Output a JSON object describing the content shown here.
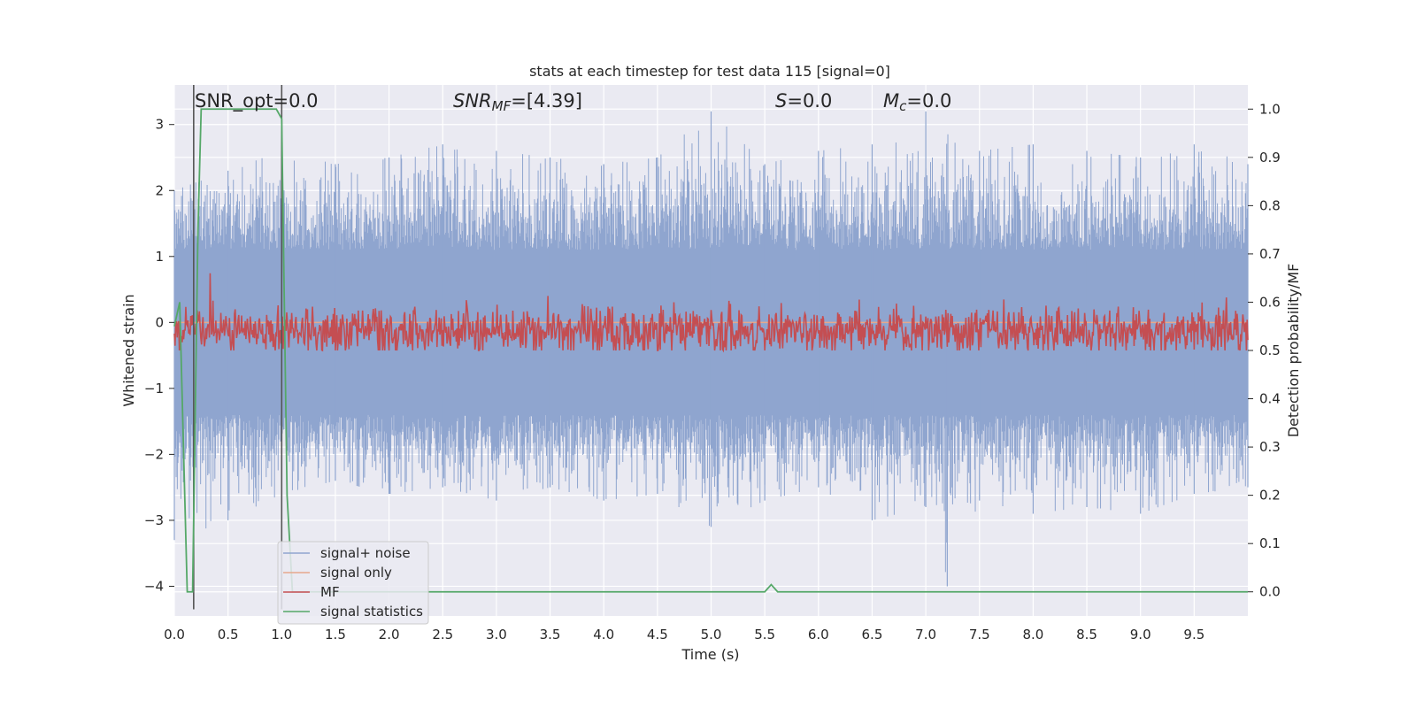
{
  "chart_data": {
    "type": "line",
    "title": "stats at each timestep for test data 115 [signal=0]",
    "xlabel": "Time (s)",
    "ylabel_left": "Whitened strain",
    "ylabel_right": "Detection probability/MF",
    "xlim": [
      0.0,
      10.0
    ],
    "ylim_left": [
      -4.45,
      3.6
    ],
    "ylim_right": [
      -0.05,
      1.05
    ],
    "x_ticks": [
      "0.0",
      "0.5",
      "1.0",
      "1.5",
      "2.0",
      "2.5",
      "3.0",
      "3.5",
      "4.0",
      "4.5",
      "5.0",
      "5.5",
      "6.0",
      "6.5",
      "7.0",
      "7.5",
      "8.0",
      "8.5",
      "9.0",
      "9.5"
    ],
    "x_tick_values": [
      0.0,
      0.5,
      1.0,
      1.5,
      2.0,
      2.5,
      3.0,
      3.5,
      4.0,
      4.5,
      5.0,
      5.5,
      6.0,
      6.5,
      7.0,
      7.5,
      8.0,
      8.5,
      9.0,
      9.5
    ],
    "y_left_ticks": [
      "−4",
      "−3",
      "−2",
      "−1",
      "0",
      "1",
      "2",
      "3"
    ],
    "y_left_tick_values": [
      -4,
      -3,
      -2,
      -1,
      0,
      1,
      2,
      3
    ],
    "y_right_ticks": [
      "0.0",
      "0.1",
      "0.2",
      "0.3",
      "0.4",
      "0.5",
      "0.6",
      "0.7",
      "0.8",
      "0.9",
      "1.0"
    ],
    "y_right_tick_values": [
      0.0,
      0.1,
      0.2,
      0.3,
      0.4,
      0.5,
      0.6,
      0.7,
      0.8,
      0.9,
      1.0
    ],
    "grid": true,
    "legend_position": "lower-left",
    "legend": [
      "signal+ noise",
      "signal only",
      "MF",
      "signal statistics"
    ],
    "annotations": {
      "snr_opt": "SNR_opt=0.0",
      "snr_mf_label": "SNR",
      "snr_mf_sub": "MF",
      "snr_mf_value": "=[4.39]",
      "s_label": "S",
      "s_value": "=0.0",
      "mc_label": "M",
      "mc_sub": "c",
      "mc_value": "=0.0"
    },
    "vertical_markers": [
      0.18,
      1.0
    ],
    "series": [
      {
        "name": "signal+ noise",
        "axis": "left",
        "color": "#8fa5cf",
        "style": "band",
        "envelope_top": [
          [
            0.0,
            2.0
          ],
          [
            0.5,
            2.3
          ],
          [
            1.0,
            2.6
          ],
          [
            1.5,
            2.4
          ],
          [
            2.0,
            2.5
          ],
          [
            2.5,
            2.7
          ],
          [
            3.0,
            2.6
          ],
          [
            3.5,
            2.5
          ],
          [
            4.0,
            2.4
          ],
          [
            4.5,
            2.5
          ],
          [
            5.0,
            3.2
          ],
          [
            5.5,
            2.4
          ],
          [
            6.0,
            2.6
          ],
          [
            6.5,
            2.7
          ],
          [
            7.0,
            3.2
          ],
          [
            7.5,
            2.6
          ],
          [
            8.0,
            2.7
          ],
          [
            8.5,
            2.6
          ],
          [
            9.0,
            2.5
          ],
          [
            9.5,
            2.7
          ],
          [
            10.0,
            2.4
          ]
        ],
        "envelope_bottom": [
          [
            0.0,
            -3.3
          ],
          [
            0.5,
            -3.0
          ],
          [
            1.0,
            -2.6
          ],
          [
            1.5,
            -2.4
          ],
          [
            2.0,
            -2.6
          ],
          [
            2.5,
            -2.5
          ],
          [
            3.0,
            -2.7
          ],
          [
            3.5,
            -2.5
          ],
          [
            4.0,
            -2.7
          ],
          [
            4.5,
            -2.6
          ],
          [
            5.0,
            -3.1
          ],
          [
            5.5,
            -2.7
          ],
          [
            6.0,
            -2.5
          ],
          [
            6.5,
            -3.0
          ],
          [
            7.0,
            -2.8
          ],
          [
            7.2,
            -4.0
          ],
          [
            7.5,
            -2.7
          ],
          [
            8.0,
            -2.9
          ],
          [
            8.5,
            -2.8
          ],
          [
            9.0,
            -2.9
          ],
          [
            9.5,
            -2.6
          ],
          [
            10.0,
            -2.5
          ]
        ]
      },
      {
        "name": "signal only",
        "axis": "left",
        "color": "#e6a88c",
        "x": [
          0.0,
          10.0
        ],
        "y": [
          0.0,
          0.0
        ]
      },
      {
        "name": "MF",
        "axis": "right",
        "color": "#c44e52",
        "style": "noisy",
        "mean": 0.54,
        "spread": 0.035,
        "max": 0.66,
        "min": 0.5
      },
      {
        "name": "signal statistics",
        "axis": "right",
        "color": "#55a868",
        "x": [
          0.0,
          0.05,
          0.12,
          0.17,
          0.22,
          0.25,
          0.3,
          0.95,
          1.0,
          1.05,
          1.1,
          5.5,
          5.56,
          5.62,
          10.0
        ],
        "y": [
          0.55,
          0.6,
          0.0,
          0.0,
          0.75,
          1.0,
          1.0,
          1.0,
          0.98,
          0.2,
          0.0,
          0.0,
          0.015,
          0.0,
          0.0
        ]
      }
    ]
  }
}
